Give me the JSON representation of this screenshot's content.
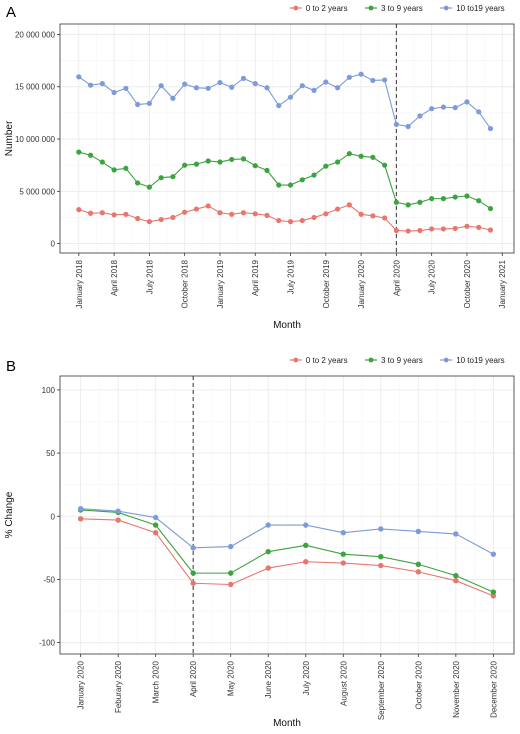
{
  "chart_data": [
    {
      "panel_label": "A",
      "type": "line",
      "xlabel": "Month",
      "ylabel": "Number",
      "ylim": [
        -900000,
        21000000
      ],
      "yticks": [
        0,
        5000000,
        10000000,
        15000000,
        20000000
      ],
      "ytick_labels": [
        "0",
        "5 000 000",
        "10 000 000",
        "15 000 000",
        "20 000 000"
      ],
      "xticks": [
        {
          "label": "January 2018",
          "index": 0
        },
        {
          "label": "April 2018",
          "index": 3
        },
        {
          "label": "July 2018",
          "index": 6
        },
        {
          "label": "October 2018",
          "index": 9
        },
        {
          "label": "January 2019",
          "index": 12
        },
        {
          "label": "April 2019",
          "index": 15
        },
        {
          "label": "July 2019",
          "index": 18
        },
        {
          "label": "October 2019",
          "index": 21
        },
        {
          "label": "January 2020",
          "index": 24
        },
        {
          "label": "April 2020",
          "index": 27
        },
        {
          "label": "July 2020",
          "index": 30
        },
        {
          "label": "October 2020",
          "index": 33
        },
        {
          "label": "January 2021",
          "index": 36
        }
      ],
      "x_range": [
        -1.6,
        37
      ],
      "vline_at_index": 27,
      "legend_position": "top-right",
      "grid": true,
      "series": [
        {
          "name": "0 to 2 years",
          "color": "#E8766D",
          "values": [
            3250000,
            2900000,
            2950000,
            2750000,
            2800000,
            2400000,
            2100000,
            2300000,
            2500000,
            3000000,
            3300000,
            3600000,
            2950000,
            2800000,
            2950000,
            2850000,
            2700000,
            2200000,
            2100000,
            2200000,
            2500000,
            2850000,
            3300000,
            3700000,
            2800000,
            2650000,
            2450000,
            1250000,
            1200000,
            1250000,
            1400000,
            1400000,
            1450000,
            1650000,
            1550000,
            1300000
          ]
        },
        {
          "name": "3 to 9 years",
          "color": "#3BA43E",
          "values": [
            8750000,
            8450000,
            7800000,
            7050000,
            7200000,
            5800000,
            5400000,
            6300000,
            6400000,
            7500000,
            7600000,
            7900000,
            7800000,
            8050000,
            8100000,
            7450000,
            7000000,
            5600000,
            5600000,
            6100000,
            6550000,
            7400000,
            7800000,
            8600000,
            8350000,
            8250000,
            7500000,
            3950000,
            3700000,
            3950000,
            4300000,
            4300000,
            4450000,
            4550000,
            4100000,
            3350000
          ]
        },
        {
          "name": "10 to19 years",
          "color": "#7D9BDA",
          "values": [
            15950000,
            15150000,
            15300000,
            14450000,
            14850000,
            13300000,
            13400000,
            15100000,
            13900000,
            15250000,
            14900000,
            14850000,
            15400000,
            14950000,
            15800000,
            15300000,
            14900000,
            13200000,
            14000000,
            15100000,
            14650000,
            15450000,
            14900000,
            15900000,
            16200000,
            15600000,
            15650000,
            11400000,
            11200000,
            12200000,
            12900000,
            13050000,
            13000000,
            13550000,
            12600000,
            11000000
          ]
        }
      ]
    },
    {
      "panel_label": "B",
      "type": "line",
      "xlabel": "Month",
      "ylabel": "% Change",
      "ylim": [
        -109,
        111
      ],
      "yticks": [
        -100,
        -50,
        0,
        50,
        100
      ],
      "ytick_labels": [
        "-100",
        "-50",
        "0",
        "50",
        "100"
      ],
      "categories": [
        "January 2020",
        "Feburary 2020",
        "March 2020",
        "April 2020",
        "May 2020",
        "June 2020",
        "July 2020",
        "August 2020",
        "September 2020",
        "October 2020",
        "November 2020",
        "December 2020"
      ],
      "x_range": [
        -0.55,
        11.55
      ],
      "vline_at_index": 3,
      "legend_position": "top-right",
      "grid": true,
      "series": [
        {
          "name": "0 to 2 years",
          "color": "#E8766D",
          "values": [
            -2,
            -3,
            -13,
            -53,
            -54,
            -41,
            -36,
            -37,
            -39,
            -44,
            -51,
            -63
          ]
        },
        {
          "name": "3 to 9 years",
          "color": "#3BA43E",
          "values": [
            5,
            3,
            -7,
            -45,
            -45,
            -28,
            -23,
            -30,
            -32,
            -38,
            -47,
            -60
          ]
        },
        {
          "name": "10 to19 years",
          "color": "#7D9BDA",
          "values": [
            6,
            4,
            -1,
            -25,
            -24,
            -7,
            -7,
            -13,
            -10,
            -12,
            -14,
            -30
          ]
        }
      ]
    }
  ]
}
